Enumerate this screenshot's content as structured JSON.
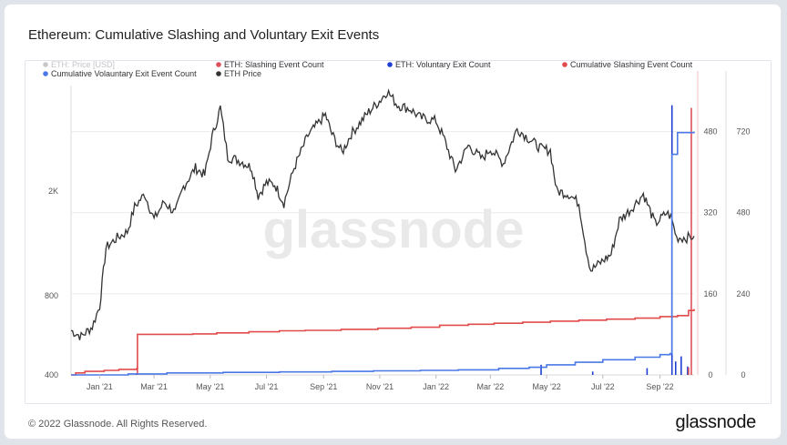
{
  "title": "Ethereum: Cumulative Slashing and Voluntary Exit Events",
  "footer": "© 2022 Glassnode. All Rights Reserved.",
  "brand": "glassnode",
  "watermark": "glassnode",
  "colors": {
    "price": "#333333",
    "price_legend_muted": "#c8c8c8",
    "slashing": "#e0505a",
    "voluntary": "#1f3fd1",
    "cum_slashing": "#e24b4b",
    "cum_voluntary": "#4a78e6"
  },
  "chart_data": {
    "type": "line",
    "title": "Ethereum: Cumulative Slashing and Voluntary Exit Events",
    "legend": [
      {
        "name": "ETH: Price [USD]",
        "color": "#c8c8c8",
        "muted": true
      },
      {
        "name": "ETH: Slashing Event Count",
        "color": "#e0505a"
      },
      {
        "name": "ETH: Voluntary Exit Count",
        "color": "#1f3fd1"
      },
      {
        "name": "Cumulative Slashing Event Count",
        "color": "#e24b4b"
      },
      {
        "name": "Cumulative Volauntary Exit Event Count",
        "color": "#4a78e6"
      },
      {
        "name": "ETH Price",
        "color": "#333333"
      }
    ],
    "x_ticks": [
      "Jan '21",
      "Mar '21",
      "May '21",
      "Jul '21",
      "Sep '21",
      "Nov '21",
      "Jan '22",
      "Mar '22",
      "May '22",
      "Jul '22",
      "Sep '22"
    ],
    "x_start": "2020-12-01",
    "x_end": "2022-10-08",
    "y_left_ticks": [
      {
        "label": "2K",
        "value": 2000
      },
      {
        "label": "800",
        "value": 800
      },
      {
        "label": "400",
        "value": 400
      }
    ],
    "y_left_scale": "log",
    "y_left_range": [
      400,
      4800
    ],
    "y_mid_ticks": [
      "480",
      "320",
      "160",
      "0"
    ],
    "y_mid_range": [
      0,
      560
    ],
    "y_right_ticks": [
      "720",
      "480",
      "240",
      "0"
    ],
    "y_right_range": [
      0,
      840
    ],
    "series": [
      {
        "name": "ETH Price",
        "axis": "left",
        "points": [
          [
            "2020-12-01",
            590
          ],
          [
            "2020-12-12",
            560
          ],
          [
            "2020-12-24",
            610
          ],
          [
            "2021-01-01",
            730
          ],
          [
            "2021-01-08",
            1220
          ],
          [
            "2021-01-20",
            1330
          ],
          [
            "2021-01-31",
            1400
          ],
          [
            "2021-02-08",
            1740
          ],
          [
            "2021-02-19",
            1950
          ],
          [
            "2021-03-01",
            1560
          ],
          [
            "2021-03-12",
            1820
          ],
          [
            "2021-03-24",
            1650
          ],
          [
            "2021-04-02",
            2080
          ],
          [
            "2021-04-15",
            2450
          ],
          [
            "2021-04-25",
            2300
          ],
          [
            "2021-05-03",
            3200
          ],
          [
            "2021-05-12",
            4150
          ],
          [
            "2021-05-20",
            2700
          ],
          [
            "2021-05-27",
            2650
          ],
          [
            "2021-06-05",
            2580
          ],
          [
            "2021-06-15",
            2450
          ],
          [
            "2021-06-22",
            1920
          ],
          [
            "2021-07-01",
            2150
          ],
          [
            "2021-07-10",
            2120
          ],
          [
            "2021-07-20",
            1800
          ],
          [
            "2021-07-31",
            2450
          ],
          [
            "2021-08-15",
            3250
          ],
          [
            "2021-09-03",
            3900
          ],
          [
            "2021-09-10",
            3300
          ],
          [
            "2021-09-21",
            2800
          ],
          [
            "2021-10-01",
            3300
          ],
          [
            "2021-10-20",
            4000
          ],
          [
            "2021-11-02",
            4450
          ],
          [
            "2021-11-09",
            4800
          ],
          [
            "2021-11-20",
            4250
          ],
          [
            "2021-12-04",
            4100
          ],
          [
            "2021-12-15",
            3800
          ],
          [
            "2022-01-01",
            3700
          ],
          [
            "2022-01-10",
            3150
          ],
          [
            "2022-01-22",
            2400
          ],
          [
            "2022-02-05",
            2980
          ],
          [
            "2022-02-20",
            2650
          ],
          [
            "2022-03-01",
            2900
          ],
          [
            "2022-03-15",
            2550
          ],
          [
            "2022-03-30",
            3450
          ],
          [
            "2022-04-10",
            3200
          ],
          [
            "2022-04-25",
            2900
          ],
          [
            "2022-05-05",
            2850
          ],
          [
            "2022-05-12",
            2000
          ],
          [
            "2022-05-25",
            1950
          ],
          [
            "2022-06-05",
            1800
          ],
          [
            "2022-06-13",
            1200
          ],
          [
            "2022-06-18",
            1000
          ],
          [
            "2022-06-30",
            1080
          ],
          [
            "2022-07-10",
            1150
          ],
          [
            "2022-07-19",
            1550
          ],
          [
            "2022-07-31",
            1700
          ],
          [
            "2022-08-14",
            1950
          ],
          [
            "2022-08-27",
            1500
          ],
          [
            "2022-09-08",
            1650
          ],
          [
            "2022-09-13",
            1600
          ],
          [
            "2022-09-19",
            1330
          ],
          [
            "2022-09-30",
            1330
          ],
          [
            "2022-10-08",
            1350
          ]
        ]
      },
      {
        "name": "Cumulative Slashing Event Count",
        "axis": "mid",
        "step": true,
        "points": [
          [
            "2020-12-01",
            0
          ],
          [
            "2020-12-06",
            4
          ],
          [
            "2020-12-16",
            7
          ],
          [
            "2021-01-06",
            9
          ],
          [
            "2021-01-22",
            11
          ],
          [
            "2021-02-10",
            12
          ],
          [
            "2021-02-11",
            80
          ],
          [
            "2021-04-12",
            81
          ],
          [
            "2021-05-08",
            83
          ],
          [
            "2021-06-12",
            85
          ],
          [
            "2021-07-15",
            87
          ],
          [
            "2021-08-12",
            88
          ],
          [
            "2021-09-20",
            90
          ],
          [
            "2021-10-30",
            92
          ],
          [
            "2021-12-05",
            94
          ],
          [
            "2022-01-05",
            98
          ],
          [
            "2022-02-05",
            100
          ],
          [
            "2022-03-05",
            102
          ],
          [
            "2022-04-05",
            104
          ],
          [
            "2022-05-05",
            106
          ],
          [
            "2022-06-05",
            108
          ],
          [
            "2022-07-05",
            110
          ],
          [
            "2022-08-05",
            112
          ],
          [
            "2022-09-01",
            115
          ],
          [
            "2022-09-20",
            117
          ],
          [
            "2022-10-02",
            127
          ],
          [
            "2022-10-08",
            130
          ]
        ]
      },
      {
        "name": "Cumulative Volauntary Exit Event Count",
        "axis": "mid",
        "step": true,
        "points": [
          [
            "2020-12-01",
            0
          ],
          [
            "2021-02-01",
            2
          ],
          [
            "2021-03-15",
            4
          ],
          [
            "2021-05-15",
            5
          ],
          [
            "2021-07-15",
            6
          ],
          [
            "2021-09-10",
            7
          ],
          [
            "2021-10-25",
            8
          ],
          [
            "2021-12-15",
            9
          ],
          [
            "2022-01-25",
            10
          ],
          [
            "2022-03-10",
            13
          ],
          [
            "2022-04-12",
            15
          ],
          [
            "2022-05-01",
            20
          ],
          [
            "2022-06-01",
            25
          ],
          [
            "2022-07-01",
            30
          ],
          [
            "2022-08-05",
            35
          ],
          [
            "2022-09-01",
            40
          ],
          [
            "2022-09-12",
            42
          ],
          [
            "2022-09-14",
            435
          ],
          [
            "2022-09-20",
            478
          ],
          [
            "2022-10-08",
            480
          ]
        ]
      },
      {
        "name": "ETH: Voluntary Exit Count",
        "axis": "right",
        "type": "bar",
        "points": [
          [
            "2021-02-10",
            5
          ],
          [
            "2022-04-25",
            30
          ],
          [
            "2022-06-20",
            10
          ],
          [
            "2022-08-18",
            20
          ],
          [
            "2022-09-14",
            798
          ],
          [
            "2022-09-18",
            40
          ],
          [
            "2022-09-24",
            55
          ],
          [
            "2022-10-01",
            25
          ]
        ]
      },
      {
        "name": "ETH: Slashing Event Count",
        "axis": "right",
        "type": "bar",
        "points": [
          [
            "2021-02-11",
            25
          ],
          [
            "2022-10-02",
            22
          ],
          [
            "2022-10-05",
            790
          ]
        ]
      }
    ]
  }
}
